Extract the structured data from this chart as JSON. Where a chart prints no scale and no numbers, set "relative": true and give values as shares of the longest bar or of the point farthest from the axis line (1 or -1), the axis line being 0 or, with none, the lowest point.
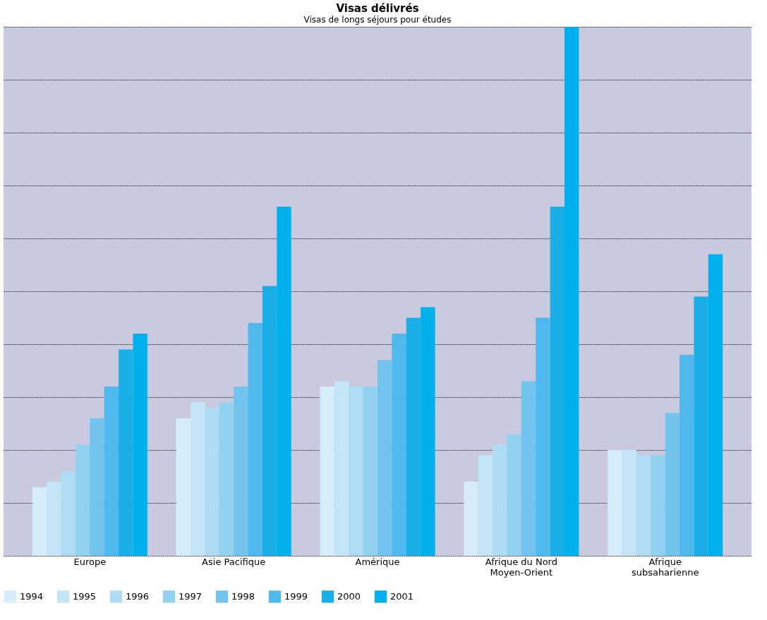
{
  "chart_data": {
    "type": "bar",
    "title": "Visas délivrés",
    "subtitle": "Visas de longs séjours pour études",
    "relative": true,
    "grid": "y",
    "legend": "bottom",
    "categories": [
      "Europe",
      "Asie Pacifique",
      "Amérique",
      "Afrique du Nord\nMoyen-Orient",
      "Afrique\nsubsaharienne"
    ],
    "series": [
      {
        "name": "1994",
        "color": "#d6ecf8",
        "values": [
          0.13,
          0.26,
          0.32,
          0.14,
          0.2
        ]
      },
      {
        "name": "1995",
        "color": "#c4e5f7",
        "values": [
          0.14,
          0.29,
          0.33,
          0.19,
          0.2
        ]
      },
      {
        "name": "1996",
        "color": "#aedcf4",
        "values": [
          0.16,
          0.28,
          0.32,
          0.21,
          0.19
        ]
      },
      {
        "name": "1997",
        "color": "#93d1f1",
        "values": [
          0.21,
          0.29,
          0.32,
          0.23,
          0.19
        ]
      },
      {
        "name": "1998",
        "color": "#72c4ee",
        "values": [
          0.26,
          0.32,
          0.37,
          0.33,
          0.27
        ]
      },
      {
        "name": "1999",
        "color": "#4fb8ec",
        "values": [
          0.32,
          0.44,
          0.42,
          0.45,
          0.38
        ]
      },
      {
        "name": "2000",
        "color": "#1aaee6",
        "values": [
          0.39,
          0.51,
          0.45,
          0.66,
          0.49
        ]
      },
      {
        "name": "2001",
        "color": "#00b0ec",
        "values": [
          0.42,
          0.66,
          0.47,
          1.0,
          0.57
        ]
      }
    ]
  }
}
